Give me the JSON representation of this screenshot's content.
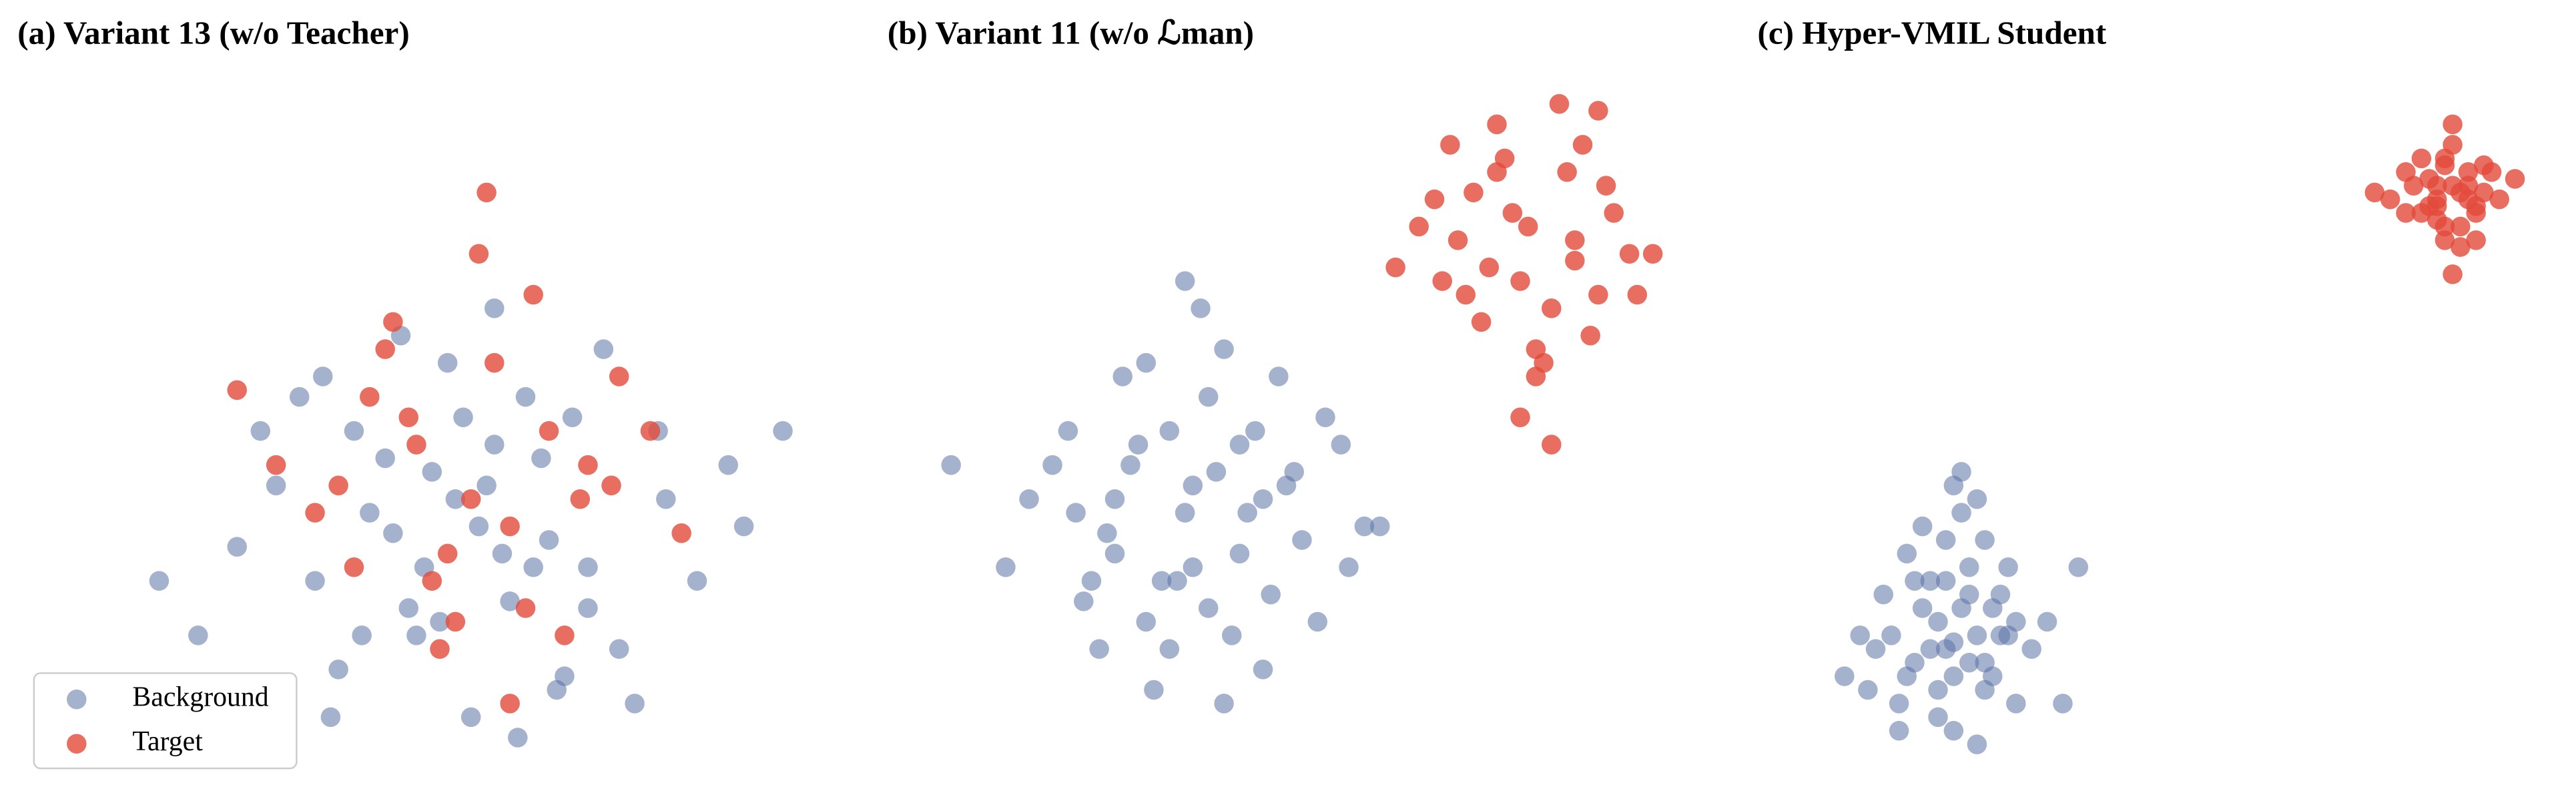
{
  "chart_data": [
    {
      "type": "scatter",
      "title": "(a) Variant 13 (w/o Teacher)",
      "xlim": [
        0,
        100
      ],
      "ylim": [
        0,
        100
      ],
      "legend": "lower left",
      "series": [
        {
          "name": "Background",
          "color": "#5b73a6",
          "x": [
            56,
            40,
            70,
            30,
            62,
            48,
            80,
            35,
            58,
            66,
            45,
            52,
            74,
            25,
            88,
            60,
            38,
            50,
            68,
            42,
            55,
            72,
            33,
            63,
            47,
            84,
            20,
            58,
            44,
            76,
            53,
            65,
            36,
            90,
            28,
            61,
            49,
            70,
            57,
            41,
            67,
            54,
            15,
            46,
            79,
            59,
            64,
            37,
            51,
            95
          ],
          "y": [
            36,
            50,
            30,
            42,
            55,
            20,
            40,
            28,
            48,
            12,
            35,
            60,
            18,
            33,
            45,
            25,
            15,
            44,
            52,
            38,
            8,
            62,
            55,
            30,
            24,
            28,
            20,
            68,
            46,
            10,
            40,
            34,
            58,
            36,
            50,
            5,
            30,
            24,
            42,
            20,
            14,
            52,
            28,
            64,
            50,
            32,
            46,
            8,
            22,
            50
          ]
        },
        {
          "name": "Target",
          "color": "#e24a3b",
          "x": [
            55,
            48,
            60,
            42,
            65,
            70,
            50,
            38,
            58,
            62,
            45,
            52,
            35,
            74,
            67,
            40,
            56,
            78,
            30,
            63,
            53,
            47,
            82,
            44,
            60,
            25,
            69,
            57,
            51,
            73
          ],
          "y": [
            40,
            48,
            36,
            55,
            50,
            45,
            28,
            42,
            60,
            24,
            66,
            32,
            38,
            58,
            20,
            30,
            76,
            50,
            45,
            70,
            22,
            52,
            35,
            62,
            10,
            56,
            40,
            85,
            18,
            42
          ]
        }
      ]
    },
    {
      "type": "scatter",
      "title": "(b) Variant 11 (w/o ℒman)",
      "xlim": [
        0,
        100
      ],
      "ylim": [
        0,
        100
      ],
      "series": [
        {
          "color": "#5b73a6",
          "x": [
            35,
            28,
            42,
            20,
            48,
            32,
            38,
            25,
            45,
            55,
            30,
            40,
            15,
            36,
            50,
            22,
            44,
            33,
            27,
            58,
            39,
            31,
            46,
            18,
            41,
            26,
            53,
            34,
            37,
            24,
            47,
            29,
            43,
            12,
            52,
            36,
            21,
            40,
            49,
            33,
            30,
            60,
            38,
            26,
            45,
            35,
            23,
            42,
            5,
            56
          ],
          "y": [
            38,
            45,
            32,
            50,
            42,
            28,
            55,
            35,
            40,
            48,
            22,
            62,
            40,
            30,
            34,
            25,
            50,
            18,
            58,
            36,
            44,
            12,
            26,
            45,
            20,
            32,
            52,
            28,
            68,
            18,
            58,
            48,
            38,
            30,
            22,
            42,
            38,
            10,
            44,
            50,
            60,
            36,
            24,
            40,
            15,
            72,
            28,
            48,
            45,
            30
          ]
        },
        {
          "color": "#e24a3b",
          "x": [
            79,
            72,
            85,
            68,
            90,
            76,
            82,
            70,
            88,
            75,
            80,
            65,
            92,
            78,
            84,
            73,
            86,
            67,
            81,
            95,
            74,
            87,
            69,
            83,
            77,
            71,
            89,
            80,
            62,
            85,
            78,
            93,
            75,
            82,
            88
          ],
          "y": [
            80,
            85,
            75,
            72,
            82,
            90,
            68,
            78,
            70,
            95,
            62,
            80,
            76,
            72,
            88,
            66,
            92,
            84,
            60,
            76,
            74,
            64,
            92,
            98,
            82,
            70,
            86,
            58,
            74,
            78,
            52,
            70,
            88,
            48,
            97
          ]
        }
      ]
    },
    {
      "type": "scatter",
      "title": "(c) Hyper-VMIL Student",
      "xlim": [
        0,
        100
      ],
      "ylim": [
        0,
        100
      ],
      "series": [
        {
          "color": "#5b73a6",
          "x": [
            22,
            18,
            26,
            14,
            28,
            20,
            24,
            16,
            30,
            12,
            22,
            25,
            19,
            27,
            21,
            15,
            32,
            23,
            17,
            29,
            10,
            24,
            20,
            26,
            18,
            34,
            22,
            13,
            28,
            25,
            21,
            16,
            30,
            19,
            23,
            27,
            11,
            24,
            20,
            38,
            15,
            26,
            22,
            29,
            17,
            8,
            25,
            21,
            36,
            23
          ],
          "y": [
            19,
            24,
            16,
            20,
            26,
            12,
            30,
            14,
            22,
            18,
            6,
            20,
            28,
            14,
            34,
            10,
            18,
            24,
            16,
            30,
            20,
            26,
            8,
            12,
            36,
            22,
            14,
            26,
            20,
            4,
            28,
            32,
            10,
            18,
            38,
            24,
            12,
            16,
            22,
            30,
            6,
            34,
            42,
            20,
            28,
            14,
            40,
            18,
            10,
            44
          ]
        },
        {
          "color": "#e24a3b",
          "x": [
            86,
            84,
            88,
            82,
            90,
            85,
            87,
            83,
            89,
            81,
            86,
            92,
            80,
            85,
            88,
            84,
            87,
            78,
            90,
            86,
            83,
            89,
            85,
            94,
            82,
            87,
            84,
            88,
            76,
            86,
            91,
            85,
            80,
            89,
            84
          ],
          "y": [
            86,
            84,
            88,
            82,
            85,
            90,
            80,
            87,
            83,
            86,
            92,
            84,
            88,
            78,
            86,
            81,
            85,
            84,
            89,
            95,
            83,
            82,
            80,
            87,
            90,
            77,
            86,
            84,
            85,
            73,
            88,
            89,
            82,
            78,
            83
          ]
        }
      ]
    }
  ]
}
